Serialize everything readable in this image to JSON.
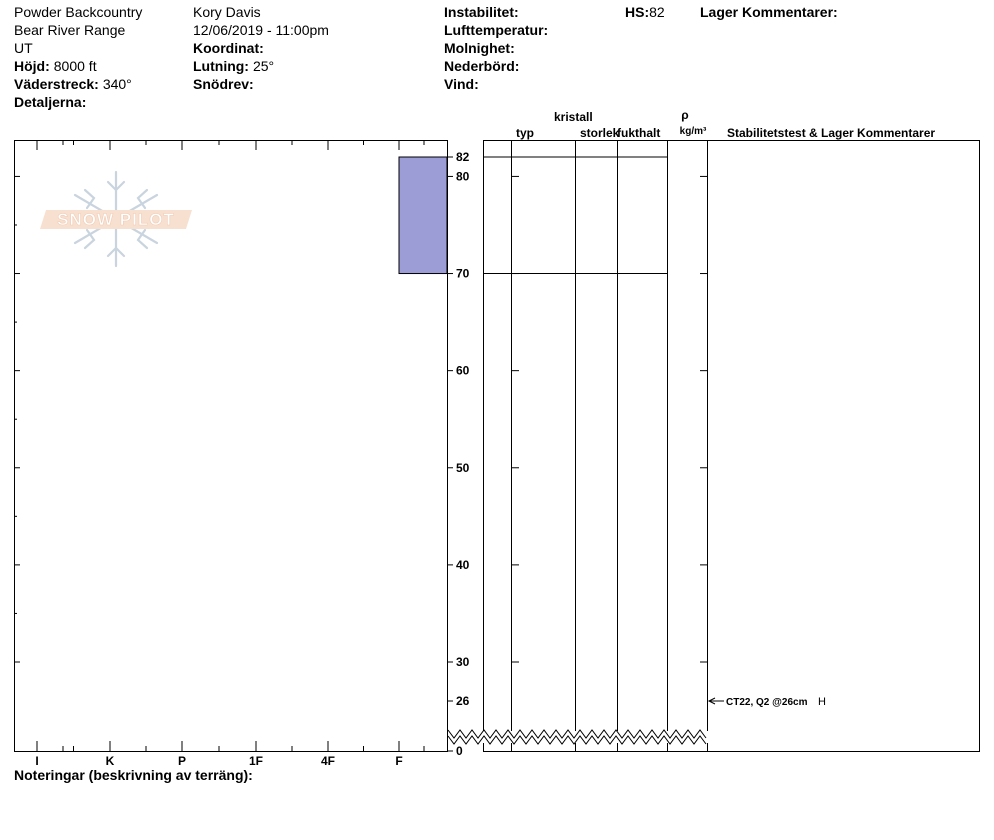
{
  "header": {
    "operation": "Powder Backcountry",
    "range": "Bear River Range",
    "state": "UT",
    "elevation_label": "Höjd:",
    "elevation_value": "8000 ft",
    "aspect_label": "Väderstreck:",
    "aspect_value": "340°",
    "details_label": "Detaljerna:",
    "observer": "Kory Davis",
    "datetime": "12/06/2019 - 11:00pm",
    "coordinate_label": "Koordinat:",
    "slope_label": "Lutning:",
    "slope_value": "25°",
    "wind_loading_label": "Snödrev:",
    "instability_label": "Instabilitet:",
    "air_temp_label": "Lufttemperatur:",
    "sky_label": "Molnighet:",
    "precip_label": "Nederbörd:",
    "wind_label": "Vind:",
    "hs_label": "HS:",
    "hs_value": "82",
    "layer_comments_label": "Lager Kommentarer:"
  },
  "columns": {
    "crystal": "kristall",
    "type": "typ",
    "size": "storlek",
    "moisture": "fukthalt",
    "rho": "ρ",
    "density_unit": "kg/m³",
    "stability": "Stabilitetstest & Lager Kommentarer"
  },
  "logo": {
    "text": "SNOW PILOT"
  },
  "footer": {
    "notes_label": "Noteringar (beskrivning av terräng):"
  },
  "chart_data": {
    "type": "snow-profile",
    "y_axis": {
      "label": "",
      "range": [
        0,
        82
      ],
      "ticks": [
        0,
        26,
        30,
        40,
        50,
        60,
        70,
        80,
        82
      ],
      "break_below": 26
    },
    "x_axis": {
      "label": "",
      "categories": [
        "I",
        "K",
        "P",
        "1F",
        "4F",
        "F"
      ]
    },
    "hardness_layers": [
      {
        "top": 82,
        "bottom": 70,
        "hardness": "F",
        "color": "#9c9cd6"
      }
    ],
    "layer_boundaries": [
      82,
      70
    ],
    "stability_tests": [
      {
        "depth": 26,
        "text": "CT22, Q2 @26cm",
        "mark": "H"
      }
    ]
  }
}
